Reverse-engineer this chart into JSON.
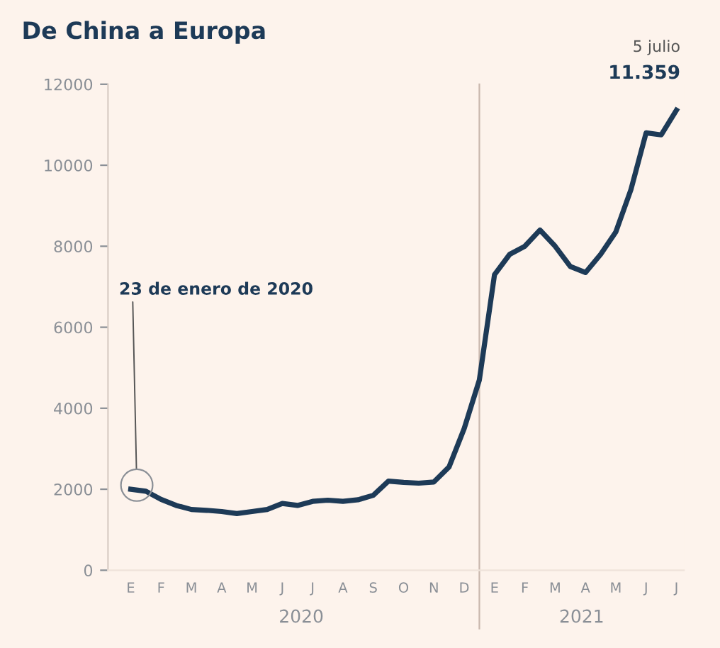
{
  "chart_data": {
    "type": "line",
    "title": "De China a Europa",
    "categories": [
      "E",
      null,
      "F",
      null,
      "M",
      null,
      "A",
      null,
      "M",
      null,
      "J",
      null,
      "J",
      null,
      "A",
      null,
      "S",
      null,
      "O",
      null,
      "N",
      null,
      "D",
      null,
      "E",
      null,
      "F",
      null,
      "M",
      null,
      "A",
      null,
      "M",
      null,
      "J",
      null,
      "J"
    ],
    "series": [
      {
        "color": "#1d3a57",
        "values": [
          2000,
          1950,
          1750,
          1600,
          1500,
          1480,
          1450,
          1400,
          1450,
          1500,
          1650,
          1600,
          1700,
          1730,
          1700,
          1740,
          1850,
          2200,
          2170,
          2150,
          2180,
          2550,
          3500,
          4700,
          7300,
          7800,
          8000,
          8400,
          8000,
          7500,
          7350,
          7800,
          8350,
          9400,
          10800,
          10750,
          11359
        ],
        "value_labels": [
          null,
          null,
          null,
          null,
          null,
          null,
          null,
          null,
          null,
          null,
          null,
          null,
          null,
          null,
          null,
          null,
          null,
          null,
          null,
          null,
          null,
          null,
          null,
          null,
          null,
          null,
          null,
          null,
          null,
          null,
          null,
          null,
          null,
          null,
          null,
          null,
          "11.359"
        ]
      }
    ],
    "ylim": [
      0,
      12000
    ],
    "yticks": [
      0,
      2000,
      4000,
      6000,
      8000,
      10000,
      12000
    ],
    "annotations": [
      "23 de enero de 2020",
      "5 julio",
      "2020",
      "2021"
    ]
  }
}
